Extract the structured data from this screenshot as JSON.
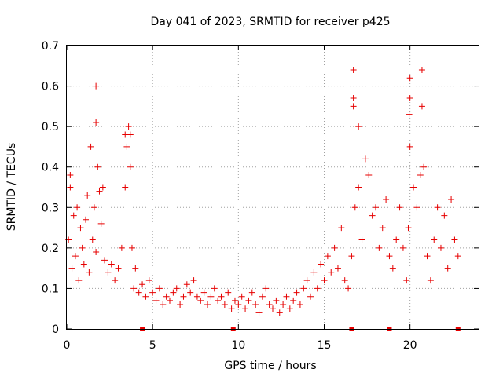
{
  "chart_data": {
    "type": "scatter",
    "title": "Day 041 of 2023, SRMTID for receiver p425",
    "xlabel": "GPS time / hours",
    "ylabel": "SRMTID / TECUs",
    "xlim": [
      0,
      24
    ],
    "ylim": [
      0,
      0.7
    ],
    "xticks": [
      "0",
      "5",
      "10",
      "15",
      "20"
    ],
    "yticks": [
      "0",
      "0.1",
      "0.2",
      "0.3",
      "0.4",
      "0.5",
      "0.6",
      "0.7"
    ],
    "grid": true,
    "marker": "plus",
    "color": "#e60000",
    "series": [
      {
        "name": "p425",
        "x": [
          0.1,
          0.2,
          0.3,
          0.4,
          0.5,
          0.6,
          0.7,
          0.8,
          0.9,
          1.0,
          1.1,
          1.2,
          1.3,
          1.4,
          1.5,
          1.6,
          1.7,
          1.8,
          1.9,
          2.0,
          2.2,
          2.4,
          2.6,
          2.8,
          3.0,
          3.2,
          3.4,
          3.5,
          3.6,
          3.7,
          3.8,
          3.9,
          4.0,
          4.2,
          4.4,
          4.6,
          4.8,
          5.0,
          5.2,
          5.4,
          5.6,
          5.8,
          6.0,
          6.2,
          6.4,
          6.6,
          6.8,
          7.0,
          7.2,
          7.4,
          7.6,
          7.8,
          8.0,
          8.2,
          8.4,
          8.6,
          8.8,
          9.0,
          9.2,
          9.4,
          9.6,
          9.8,
          10.0,
          10.2,
          10.4,
          10.6,
          10.8,
          11.0,
          11.2,
          11.4,
          11.6,
          11.8,
          12.0,
          12.2,
          12.4,
          12.6,
          12.8,
          13.0,
          13.2,
          13.4,
          13.6,
          13.8,
          14.0,
          14.2,
          14.4,
          14.6,
          14.8,
          15.0,
          15.2,
          15.4,
          15.6,
          15.8,
          16.0,
          16.2,
          16.4,
          16.6,
          16.7,
          16.8,
          17.0,
          17.2,
          17.4,
          17.6,
          17.8,
          18.0,
          18.2,
          18.4,
          18.6,
          18.8,
          19.0,
          19.2,
          19.4,
          19.6,
          19.8,
          19.9,
          20.0,
          20.2,
          20.4,
          20.6,
          20.8,
          21.0,
          21.2,
          21.4,
          21.6,
          21.8,
          22.0,
          22.2,
          22.4,
          22.6,
          22.8,
          1.7,
          1.7,
          16.7,
          16.7,
          20.0,
          20.0,
          20.7,
          20.7,
          3.4,
          3.7,
          19.95,
          17.0,
          0.2,
          2.1
        ],
        "y": [
          0.22,
          0.35,
          0.15,
          0.28,
          0.18,
          0.3,
          0.12,
          0.25,
          0.2,
          0.16,
          0.27,
          0.33,
          0.14,
          0.45,
          0.22,
          0.3,
          0.19,
          0.4,
          0.34,
          0.26,
          0.17,
          0.14,
          0.16,
          0.12,
          0.15,
          0.2,
          0.35,
          0.45,
          0.5,
          0.4,
          0.2,
          0.1,
          0.15,
          0.09,
          0.11,
          0.08,
          0.12,
          0.09,
          0.07,
          0.1,
          0.06,
          0.08,
          0.07,
          0.09,
          0.1,
          0.06,
          0.08,
          0.11,
          0.09,
          0.12,
          0.08,
          0.07,
          0.09,
          0.06,
          0.08,
          0.1,
          0.07,
          0.08,
          0.06,
          0.09,
          0.05,
          0.07,
          0.06,
          0.08,
          0.05,
          0.07,
          0.09,
          0.06,
          0.04,
          0.08,
          0.1,
          0.06,
          0.05,
          0.07,
          0.04,
          0.06,
          0.08,
          0.05,
          0.07,
          0.09,
          0.06,
          0.1,
          0.12,
          0.08,
          0.14,
          0.1,
          0.16,
          0.12,
          0.18,
          0.14,
          0.2,
          0.15,
          0.25,
          0.12,
          0.1,
          0.18,
          0.55,
          0.3,
          0.35,
          0.22,
          0.42,
          0.38,
          0.28,
          0.3,
          0.2,
          0.25,
          0.32,
          0.18,
          0.15,
          0.22,
          0.3,
          0.2,
          0.12,
          0.25,
          0.45,
          0.35,
          0.3,
          0.38,
          0.4,
          0.18,
          0.12,
          0.22,
          0.3,
          0.2,
          0.28,
          0.15,
          0.32,
          0.22,
          0.18,
          0.6,
          0.51,
          0.64,
          0.57,
          0.62,
          0.57,
          0.64,
          0.55,
          0.48,
          0.48,
          0.53,
          0.5,
          0.38,
          0.35
        ]
      }
    ],
    "gap_markers_x": [
      4.4,
      9.7,
      16.6,
      18.8,
      22.8
    ]
  }
}
